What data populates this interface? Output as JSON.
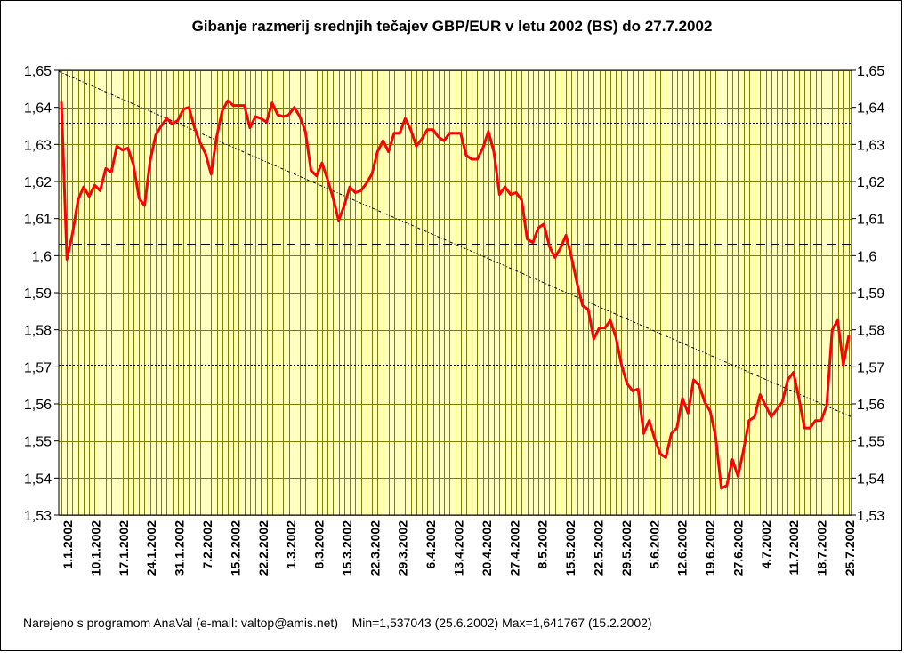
{
  "chart_data": {
    "type": "line",
    "title": "Gibanje razmerij srednjih tečajev GBP/EUR v letu 2002 (BS) do 27.7.2002",
    "xlabel": "",
    "ylabel": "",
    "ylim": [
      1.53,
      1.65
    ],
    "y_ticks": [
      "1,65",
      "1,64",
      "1,63",
      "1,62",
      "1,61",
      "1,6",
      "1,59",
      "1,58",
      "1,57",
      "1,56",
      "1,55",
      "1,54",
      "1,53"
    ],
    "x_tick_labels": [
      "1.1.2002",
      "10.1.2002",
      "17.1.2002",
      "24.1.2002",
      "31.1.2002",
      "7.2.2002",
      "15.2.2002",
      "22.2.2002",
      "1.3.2002",
      "8.3.2002",
      "15.3.2002",
      "22.3.2002",
      "29.3.2002",
      "6.4.2002",
      "13.4.2002",
      "20.4.2002",
      "27.4.2002",
      "8.5.2002",
      "15.5.2002",
      "22.5.2002",
      "29.5.2002",
      "5.6.2002",
      "12.6.2002",
      "19.6.2002",
      "27.6.2002",
      "4.7.2002",
      "11.7.2002",
      "18.7.2002",
      "25.7.2002"
    ],
    "grid": true,
    "legend": "none",
    "colors": {
      "series": "#ff0000",
      "grid": "#808000",
      "plot_background": "#ffffc0"
    },
    "series": [
      {
        "values": [
          1.6415,
          1.599,
          1.606,
          1.615,
          1.6185,
          1.616,
          1.619,
          1.6175,
          1.6235,
          1.6225,
          1.6295,
          1.6285,
          1.629,
          1.6245,
          1.6155,
          1.6135,
          1.6255,
          1.6325,
          1.635,
          1.637,
          1.6355,
          1.6365,
          1.6395,
          1.64,
          1.6345,
          1.6305,
          1.6275,
          1.622,
          1.632,
          1.639,
          1.6418,
          1.6405,
          1.6405,
          1.6405,
          1.6345,
          1.6375,
          1.637,
          1.636,
          1.6412,
          1.638,
          1.6375,
          1.638,
          1.64,
          1.6375,
          1.6335,
          1.623,
          1.6215,
          1.625,
          1.6205,
          1.6155,
          1.6095,
          1.6135,
          1.6185,
          1.617,
          1.6175,
          1.6195,
          1.622,
          1.628,
          1.631,
          1.628,
          1.633,
          1.633,
          1.637,
          1.634,
          1.6295,
          1.6315,
          1.634,
          1.634,
          1.632,
          1.631,
          1.633,
          1.633,
          1.633,
          1.627,
          1.626,
          1.626,
          1.629,
          1.6335,
          1.628,
          1.6165,
          1.6185,
          1.6165,
          1.617,
          1.615,
          1.6045,
          1.6035,
          1.6075,
          1.6085,
          1.6025,
          1.5995,
          1.602,
          1.6055,
          1.5995,
          1.5925,
          1.5865,
          1.5855,
          1.5775,
          1.5805,
          1.5805,
          1.5825,
          1.578,
          1.5705,
          1.5655,
          1.5635,
          1.564,
          1.552,
          1.5555,
          1.5505,
          1.5465,
          1.5455,
          1.552,
          1.5535,
          1.5615,
          1.5575,
          1.5665,
          1.565,
          1.5605,
          1.558,
          1.551,
          1.5372,
          1.538,
          1.545,
          1.5405,
          1.5475,
          1.5555,
          1.5565,
          1.5625,
          1.5595,
          1.5565,
          1.5585,
          1.5605,
          1.5665,
          1.5685,
          1.5615,
          1.5535,
          1.5535,
          1.5555,
          1.5555,
          1.5595,
          1.58,
          1.5825,
          1.5705,
          1.5785
        ]
      }
    ],
    "reference_lines": {
      "dashed_level": 1.6032,
      "dotted_levels": [
        1.6358,
        1.5706
      ],
      "trend_start": 1.6497,
      "trend_end": 1.5565
    }
  },
  "footer": {
    "credit": "Narejeno s programom AnaVal (e-mail: valtop@amis.net)",
    "stats": "Min=1,537043 (25.6.2002) Max=1,641767 (15.2.2002)"
  }
}
